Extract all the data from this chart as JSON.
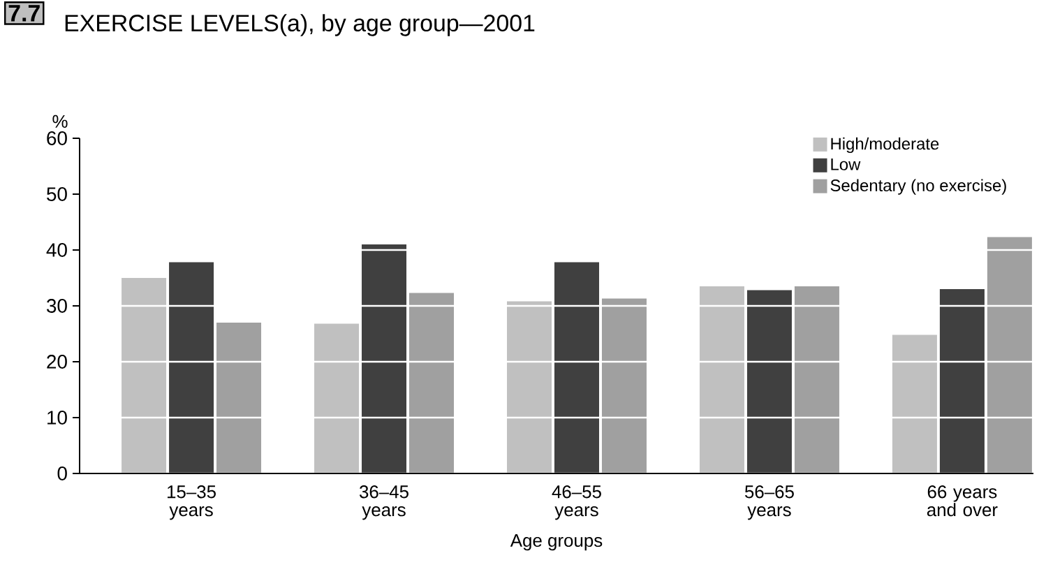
{
  "chart_data": {
    "type": "bar",
    "title": "EXERCISE LEVELS(a), by age group—2001",
    "annotations": [
      "7.7"
    ],
    "xlabel": "Age groups",
    "ylabel": "%",
    "categories": [
      "15–35 years",
      "36–45 years",
      "46–55 years",
      "56–65 years",
      "66 years and over"
    ],
    "series": [
      {
        "name": "High/moderate",
        "color": "#c0c0c0",
        "values": [
          35,
          26.8,
          30.8,
          33.5,
          24.8
        ]
      },
      {
        "name": "Low",
        "color": "#404040",
        "values": [
          37.8,
          41,
          37.8,
          32.8,
          33
        ]
      },
      {
        "name": "Sedentary (no exercise)",
        "color": "#a0a0a0",
        "values": [
          27,
          32.3,
          31.3,
          33.5,
          42.3
        ]
      }
    ],
    "ylim": [
      0,
      60
    ],
    "yticks": [
      0,
      10,
      20,
      30,
      40,
      50,
      60
    ],
    "grid": "y",
    "legend": "top right"
  }
}
